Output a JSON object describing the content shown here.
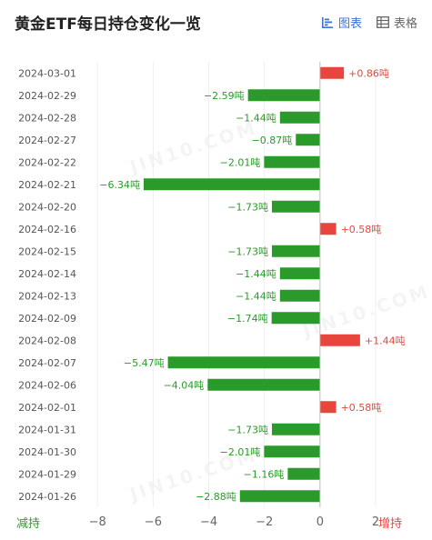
{
  "title": "黄金ETF每日持仓变化一览",
  "tabs": [
    {
      "label": "图表",
      "icon": "bar-chart-icon",
      "active": true
    },
    {
      "label": "表格",
      "icon": "table-icon",
      "active": false
    }
  ],
  "axis_ends": {
    "left": "减持",
    "right": "增持"
  },
  "watermark_text": "JIN10.COM",
  "colors": {
    "increase": "#e8463c",
    "decrease": "#2a9a2a",
    "accent": "#3b72e0"
  },
  "chart_data": {
    "type": "bar",
    "orientation": "horizontal",
    "unit": "吨",
    "categories": [
      "2024-03-01",
      "2024-02-29",
      "2024-02-28",
      "2024-02-27",
      "2024-02-22",
      "2024-02-21",
      "2024-02-20",
      "2024-02-16",
      "2024-02-15",
      "2024-02-14",
      "2024-02-13",
      "2024-02-09",
      "2024-02-08",
      "2024-02-07",
      "2024-02-06",
      "2024-02-01",
      "2024-01-31",
      "2024-01-30",
      "2024-01-29",
      "2024-01-26"
    ],
    "values": [
      0.86,
      -2.59,
      -1.44,
      -0.87,
      -2.01,
      -6.34,
      -1.73,
      0.58,
      -1.73,
      -1.44,
      -1.44,
      -1.74,
      1.44,
      -5.47,
      -4.04,
      0.58,
      -1.73,
      -2.01,
      -1.16,
      -2.88
    ],
    "labels": [
      "+0.86吨",
      "−2.59吨",
      "−1.44吨",
      "−0.87吨",
      "−2.01吨",
      "−6.34吨",
      "−1.73吨",
      "+0.58吨",
      "−1.73吨",
      "−1.44吨",
      "−1.44吨",
      "−1.74吨",
      "+1.44吨",
      "−5.47吨",
      "−4.04吨",
      "+0.58吨",
      "−1.73吨",
      "−2.01吨",
      "−1.16吨",
      "−2.88吨"
    ],
    "x_ticks": [
      "−8",
      "−6",
      "−4",
      "−2",
      "0",
      "2"
    ],
    "x_tick_values": [
      -8,
      -6,
      -4,
      -2,
      0,
      2
    ],
    "xlim": [
      -8.4,
      3.7
    ],
    "grid": true
  }
}
